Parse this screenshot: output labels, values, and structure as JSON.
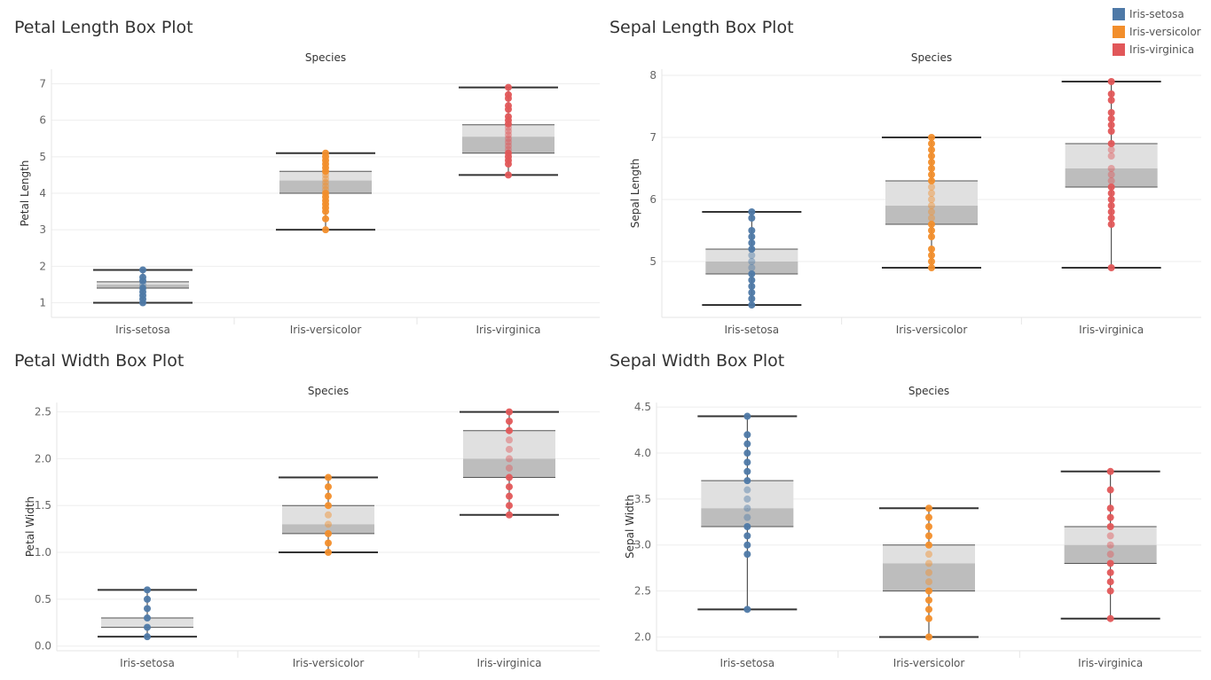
{
  "legend": {
    "items": [
      {
        "label": "Iris-setosa",
        "color": "#4e79a7"
      },
      {
        "label": "Iris-versicolor",
        "color": "#f28e2b"
      },
      {
        "label": "Iris-virginica",
        "color": "#e15759"
      }
    ]
  },
  "colors": {
    "box_upper": "#e0e0e0",
    "box_lower": "#bdbdbd",
    "gridline": "#eeeeee",
    "whisker": "#333333",
    "Iris-setosa": "#4e79a7",
    "Iris-versicolor": "#f28e2b",
    "Iris-virginica": "#e15759"
  },
  "chart_data": [
    {
      "type": "box",
      "title": "Petal Length Box Plot",
      "column_header": "Species",
      "ylabel": "Petal Length",
      "categories": [
        "Iris-setosa",
        "Iris-versicolor",
        "Iris-virginica"
      ],
      "ylim": [
        0.6,
        7.4
      ],
      "yticks": [
        1,
        2,
        3,
        4,
        5,
        6,
        7
      ],
      "ytick_labels": [
        "1",
        "2",
        "3",
        "4",
        "5",
        "6",
        "7"
      ],
      "boxes": [
        {
          "min": 1.0,
          "q1": 1.4,
          "median": 1.5,
          "q3": 1.575,
          "max": 1.9
        },
        {
          "min": 3.0,
          "q1": 4.0,
          "median": 4.35,
          "q3": 4.6,
          "max": 5.1
        },
        {
          "min": 4.5,
          "q1": 5.1,
          "median": 5.55,
          "q3": 5.875,
          "max": 6.9
        }
      ],
      "points": [
        [
          1.0,
          1.1,
          1.2,
          1.3,
          1.4,
          1.5,
          1.6,
          1.7,
          1.9
        ],
        [
          3.0,
          3.3,
          3.5,
          3.6,
          3.7,
          3.8,
          3.9,
          4.0,
          4.1,
          4.2,
          4.3,
          4.4,
          4.5,
          4.6,
          4.7,
          4.8,
          4.9,
          5.0,
          5.1
        ],
        [
          4.5,
          4.8,
          4.9,
          5.0,
          5.1,
          5.2,
          5.3,
          5.4,
          5.5,
          5.6,
          5.7,
          5.8,
          5.9,
          6.0,
          6.1,
          6.3,
          6.4,
          6.6,
          6.7,
          6.9
        ]
      ]
    },
    {
      "type": "box",
      "title": "Sepal Length Box Plot",
      "column_header": "Species",
      "ylabel": "Sepal Length",
      "categories": [
        "Iris-setosa",
        "Iris-versicolor",
        "Iris-virginica"
      ],
      "ylim": [
        4.1,
        8.1
      ],
      "yticks": [
        5,
        6,
        7,
        8
      ],
      "ytick_labels": [
        "5",
        "6",
        "7",
        "8"
      ],
      "boxes": [
        {
          "min": 4.3,
          "q1": 4.8,
          "median": 5.0,
          "q3": 5.2,
          "max": 5.8
        },
        {
          "min": 4.9,
          "q1": 5.6,
          "median": 5.9,
          "q3": 6.3,
          "max": 7.0
        },
        {
          "min": 4.9,
          "q1": 6.2,
          "median": 6.5,
          "q3": 6.9,
          "max": 7.9
        }
      ],
      "points": [
        [
          4.3,
          4.4,
          4.5,
          4.6,
          4.7,
          4.8,
          4.9,
          5.0,
          5.1,
          5.2,
          5.3,
          5.4,
          5.5,
          5.7,
          5.8
        ],
        [
          4.9,
          5.0,
          5.1,
          5.2,
          5.4,
          5.5,
          5.6,
          5.7,
          5.8,
          5.9,
          6.0,
          6.1,
          6.2,
          6.3,
          6.4,
          6.5,
          6.6,
          6.7,
          6.8,
          6.9,
          7.0
        ],
        [
          4.9,
          5.6,
          5.7,
          5.8,
          5.9,
          6.0,
          6.1,
          6.2,
          6.3,
          6.4,
          6.5,
          6.7,
          6.8,
          6.9,
          7.1,
          7.2,
          7.3,
          7.4,
          7.6,
          7.7,
          7.9
        ]
      ]
    },
    {
      "type": "box",
      "title": "Petal Width Box Plot",
      "column_header": "Species",
      "ylabel": "Petal Width",
      "categories": [
        "Iris-setosa",
        "Iris-versicolor",
        "Iris-virginica"
      ],
      "ylim": [
        -0.05,
        2.6
      ],
      "yticks": [
        0,
        0.5,
        1,
        1.5,
        2,
        2.5
      ],
      "ytick_labels": [
        "0.0",
        "0.5",
        "1.0",
        "1.5",
        "2.0",
        "2.5"
      ],
      "boxes": [
        {
          "min": 0.1,
          "q1": 0.2,
          "median": 0.2,
          "q3": 0.3,
          "max": 0.6
        },
        {
          "min": 1.0,
          "q1": 1.2,
          "median": 1.3,
          "q3": 1.5,
          "max": 1.8
        },
        {
          "min": 1.4,
          "q1": 1.8,
          "median": 2.0,
          "q3": 2.3,
          "max": 2.5
        }
      ],
      "points": [
        [
          0.1,
          0.2,
          0.3,
          0.4,
          0.5,
          0.6
        ],
        [
          1.0,
          1.1,
          1.2,
          1.3,
          1.4,
          1.5,
          1.6,
          1.7,
          1.8
        ],
        [
          1.4,
          1.5,
          1.6,
          1.7,
          1.8,
          1.9,
          2.0,
          2.1,
          2.2,
          2.3,
          2.4,
          2.5
        ]
      ]
    },
    {
      "type": "box",
      "title": "Sepal Width Box Plot",
      "column_header": "Species",
      "ylabel": "Sepal Width",
      "categories": [
        "Iris-setosa",
        "Iris-versicolor",
        "Iris-virginica"
      ],
      "ylim": [
        1.85,
        4.55
      ],
      "yticks": [
        2.0,
        2.5,
        3.0,
        3.5,
        4.0,
        4.5
      ],
      "ytick_labels": [
        "2.0",
        "2.5",
        "3.0",
        "3.5",
        "4.0",
        "4.5"
      ],
      "boxes": [
        {
          "min": 2.3,
          "q1": 3.2,
          "median": 3.4,
          "q3": 3.7,
          "max": 4.4
        },
        {
          "min": 2.0,
          "q1": 2.5,
          "median": 2.8,
          "q3": 3.0,
          "max": 3.4
        },
        {
          "min": 2.2,
          "q1": 2.8,
          "median": 3.0,
          "q3": 3.2,
          "max": 3.8
        }
      ],
      "points": [
        [
          2.3,
          2.9,
          3.0,
          3.1,
          3.2,
          3.3,
          3.4,
          3.5,
          3.6,
          3.7,
          3.8,
          3.9,
          4.0,
          4.1,
          4.2,
          4.4
        ],
        [
          2.0,
          2.2,
          2.3,
          2.4,
          2.5,
          2.6,
          2.7,
          2.8,
          2.9,
          3.0,
          3.1,
          3.2,
          3.3,
          3.4
        ],
        [
          2.2,
          2.5,
          2.6,
          2.7,
          2.8,
          2.9,
          3.0,
          3.1,
          3.2,
          3.3,
          3.4,
          3.6,
          3.8
        ]
      ]
    }
  ]
}
